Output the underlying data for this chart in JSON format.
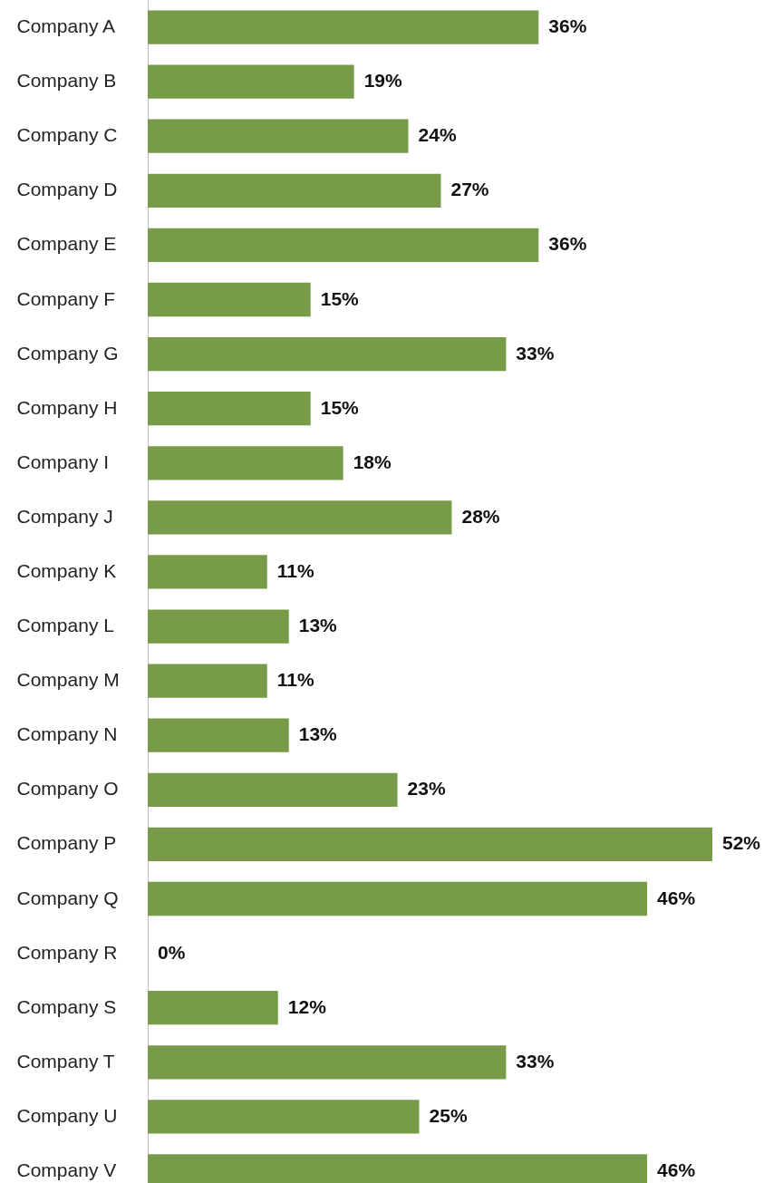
{
  "chart_data": {
    "type": "bar",
    "orientation": "horizontal",
    "categories": [
      "Company A",
      "Company B",
      "Company C",
      "Company D",
      "Company E",
      "Company F",
      "Company G",
      "Company H",
      "Company I",
      "Company J",
      "Company K",
      "Company L",
      "Company M",
      "Company N",
      "Company O",
      "Company P",
      "Company Q",
      "Company R",
      "Company S",
      "Company T",
      "Company U",
      "Company V"
    ],
    "values": [
      36,
      19,
      24,
      27,
      36,
      15,
      33,
      15,
      18,
      28,
      11,
      13,
      11,
      13,
      23,
      52,
      46,
      0,
      12,
      33,
      25,
      46
    ],
    "value_labels": [
      "36%",
      "19%",
      "24%",
      "27%",
      "36%",
      "15%",
      "33%",
      "15%",
      "18%",
      "28%",
      "11%",
      "13%",
      "11%",
      "13%",
      "23%",
      "52%",
      "46%",
      "0%",
      "12%",
      "33%",
      "25%",
      "46%"
    ],
    "color": "#789b4a",
    "grid": false,
    "tick_labels": "y"
  }
}
